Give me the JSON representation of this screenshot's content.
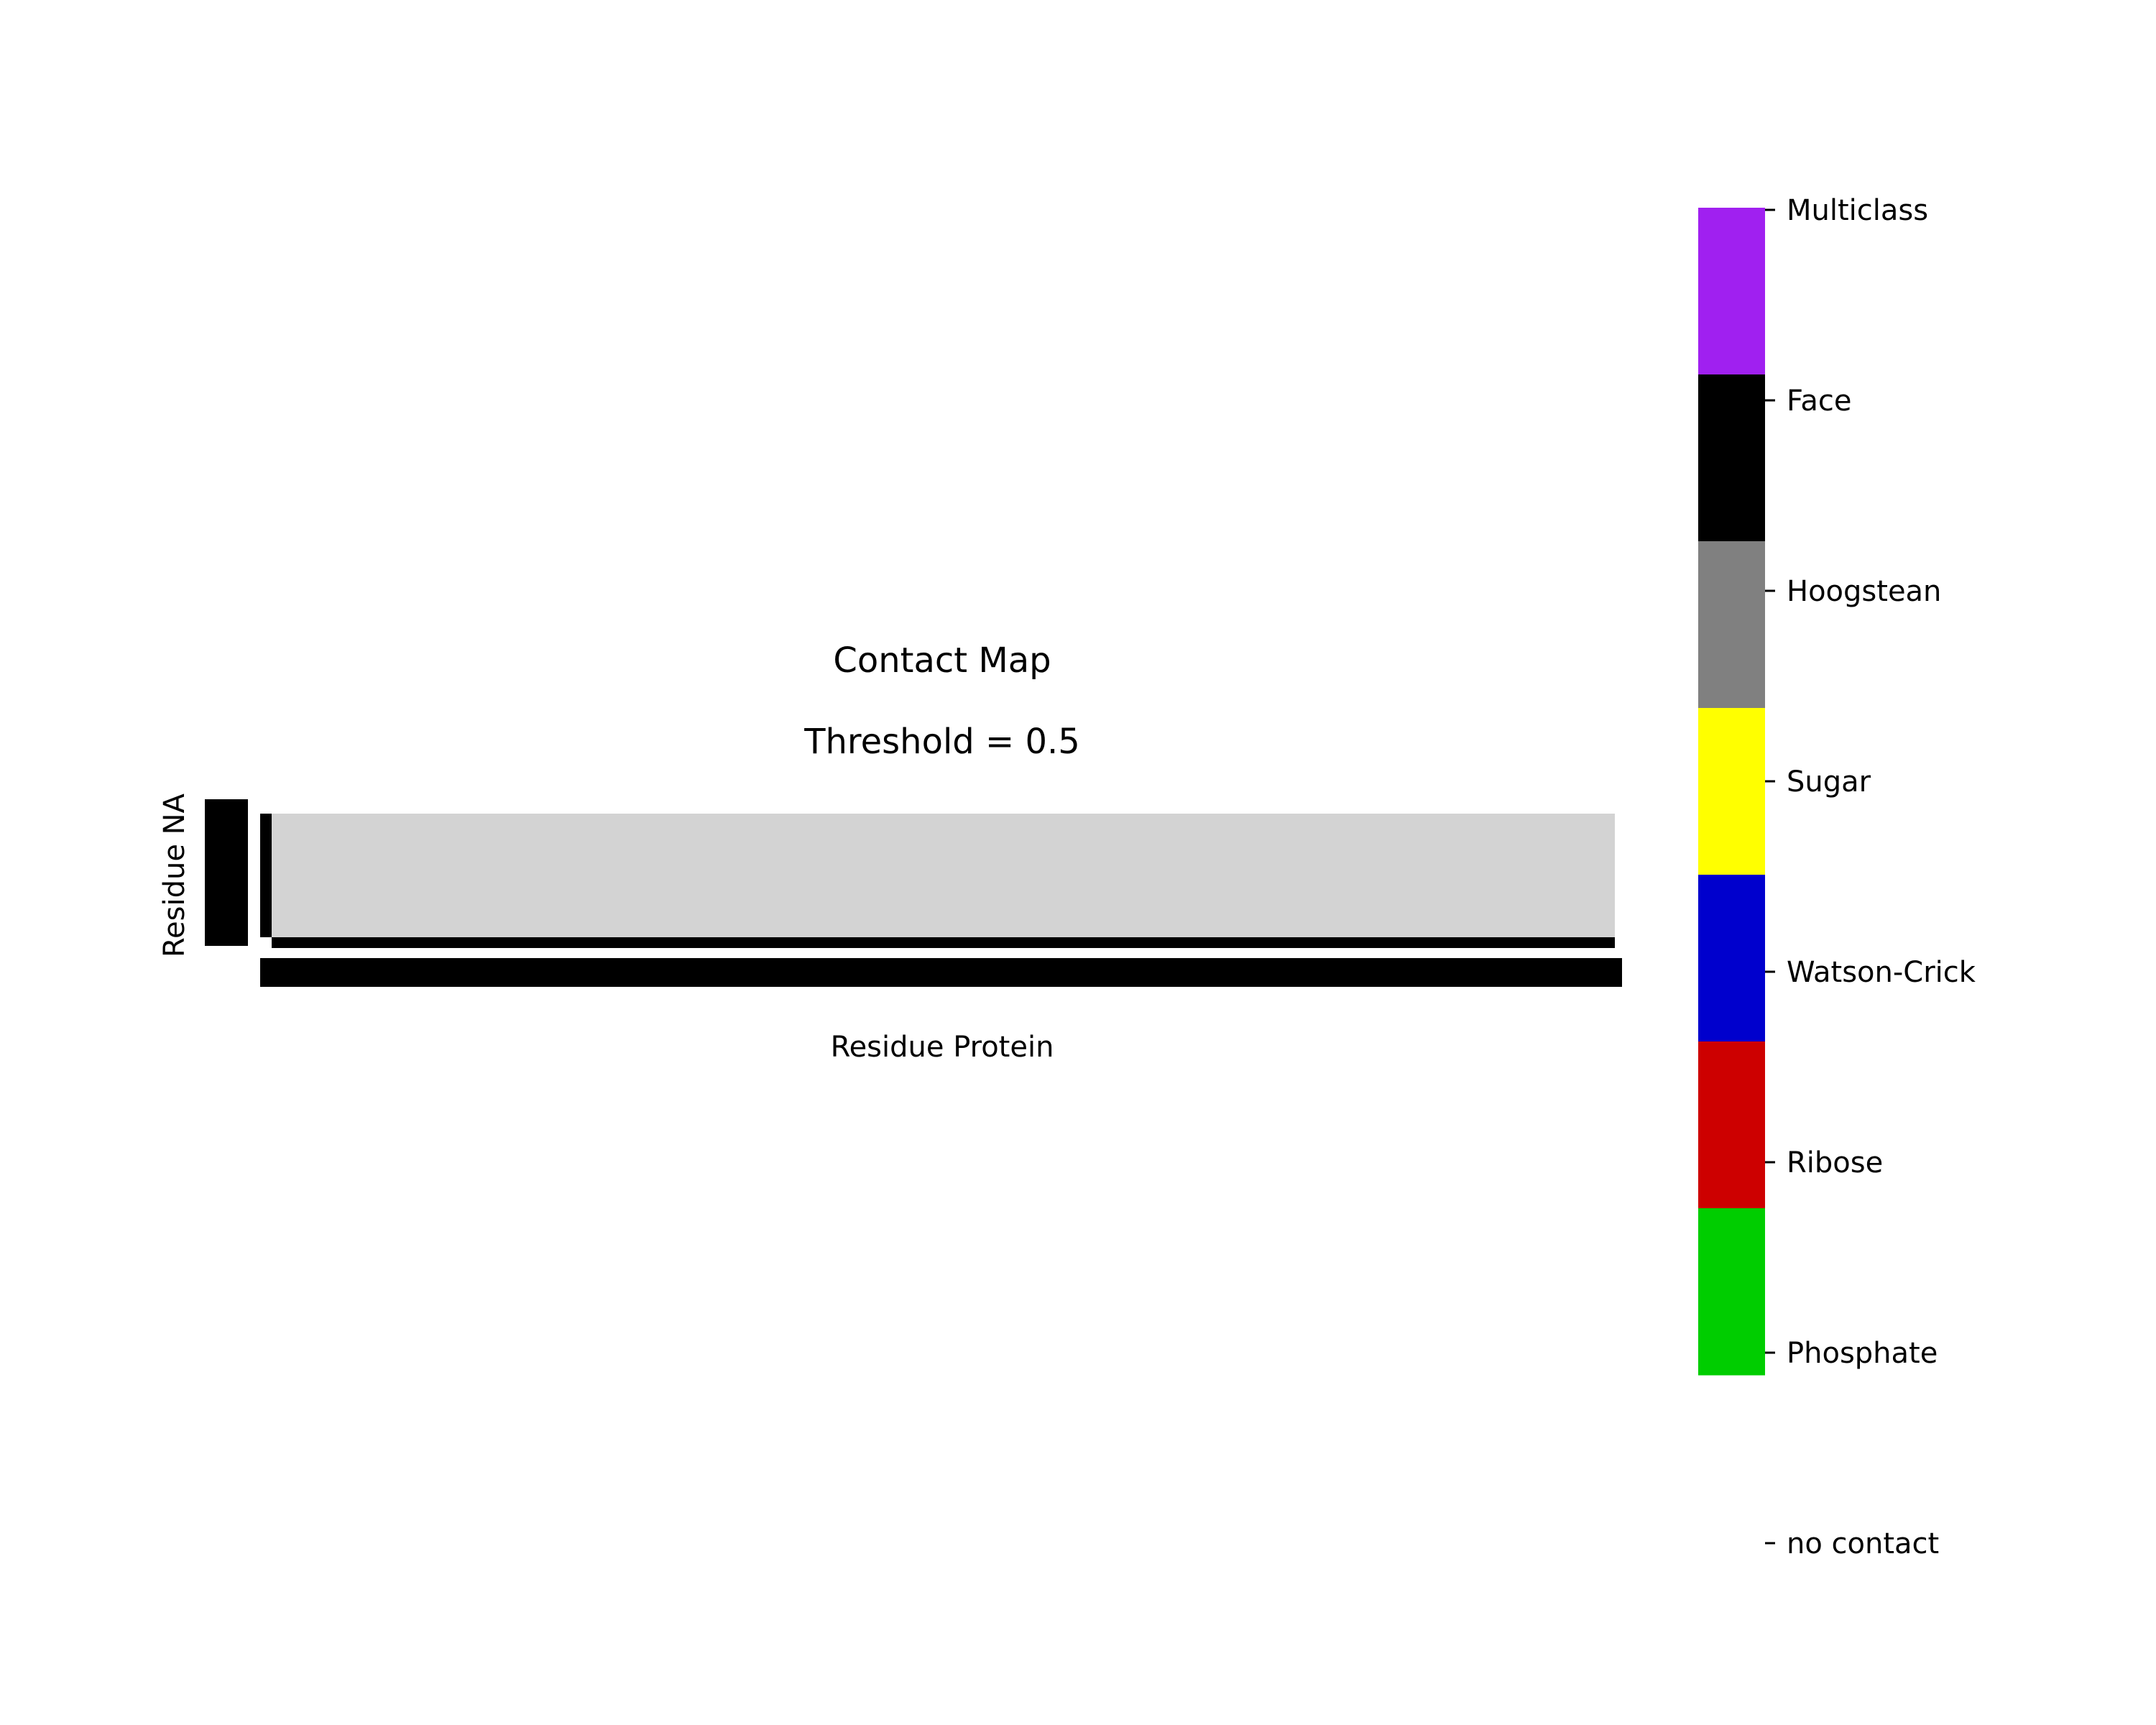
{
  "chart_data": {
    "type": "heatmap",
    "title": "Contact Map",
    "subtitle": "Threshold = 0.5",
    "xlabel": "Residue Protein",
    "ylabel": "Residue NA",
    "cell_value": "no contact",
    "legend_placement": "right",
    "colorbar": {
      "labels": [
        "Multiclass",
        "Face",
        "Hoogstean",
        "Sugar",
        "Watson-Crick",
        "Ribose",
        "Phosphate",
        "no contact"
      ],
      "colors": [
        "#a020f0",
        "#000000",
        "#808080",
        "#ffff00",
        "#0000cd",
        "#cd0000",
        "#00cd00",
        "#d3d3d3"
      ]
    }
  }
}
